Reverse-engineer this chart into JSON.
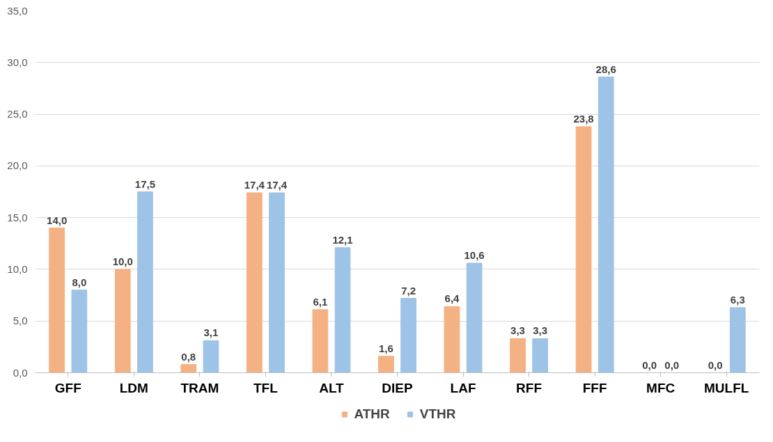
{
  "chart_data": {
    "type": "bar",
    "categories": [
      "GFF",
      "LDM",
      "TRAM",
      "TFL",
      "ALT",
      "DIEP",
      "LAF",
      "RFF",
      "FFF",
      "MFC",
      "MULFL"
    ],
    "series": [
      {
        "name": "ATHR",
        "color": "#f4b183",
        "values": [
          14.0,
          10.0,
          0.8,
          17.4,
          6.1,
          1.6,
          6.4,
          3.3,
          23.8,
          0.0,
          0.0
        ],
        "value_labels": [
          "14,0",
          "10,0",
          "0,8",
          "17,4",
          "6,1",
          "1,6",
          "6,4",
          "3,3",
          "23,8",
          "0,0",
          "0,0"
        ]
      },
      {
        "name": "VTHR",
        "color": "#9dc3e6",
        "values": [
          8.0,
          17.5,
          3.1,
          17.4,
          12.1,
          7.2,
          10.6,
          3.3,
          28.6,
          0.0,
          6.3
        ],
        "value_labels": [
          "8,0",
          "17,5",
          "3,1",
          "17,4",
          "12,1",
          "7,2",
          "10,6",
          "3,3",
          "28,6",
          "0,0",
          "6,3"
        ]
      }
    ],
    "ylim": [
      0,
      35
    ],
    "yticks": [
      {
        "value": 0,
        "label": "0,0"
      },
      {
        "value": 5,
        "label": "5,0"
      },
      {
        "value": 10,
        "label": "10,0"
      },
      {
        "value": 15,
        "label": "15,0"
      },
      {
        "value": 20,
        "label": "20,0"
      },
      {
        "value": 25,
        "label": "25,0"
      },
      {
        "value": 30,
        "label": "30,0"
      },
      {
        "value": 35,
        "label": "35,0"
      }
    ],
    "grid": "y",
    "legend": "bottom"
  }
}
